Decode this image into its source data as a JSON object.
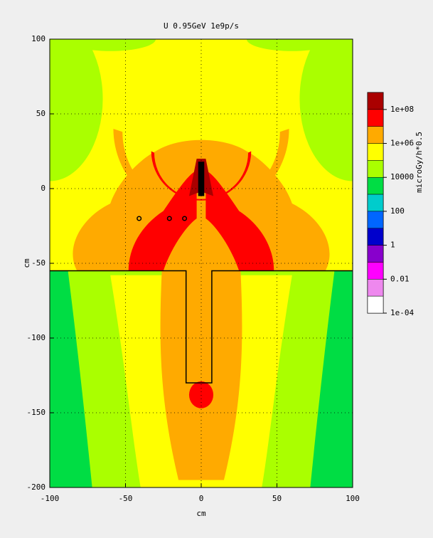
{
  "chart_data": {
    "type": "heatmap",
    "title": "U 0.95GeV 1e9p/s",
    "x_label": "cm",
    "y_label": "cm",
    "xlim": [
      -100,
      100
    ],
    "xticks": [
      -100,
      -50,
      0,
      50,
      100
    ],
    "ylim": [
      -200,
      100
    ],
    "yticks": [
      -200,
      -150,
      -100,
      -50,
      0,
      50,
      100
    ],
    "grid": true,
    "colorbar": {
      "label": "microGy/h*0.5",
      "log": true,
      "lim": [
        0.0001,
        1000000000
      ],
      "ticks": [
        {
          "value": 0.0001,
          "label": "1e-04"
        },
        0.01,
        1,
        100,
        10000,
        {
          "value": 1000000,
          "label": "1e+06"
        },
        {
          "value": 100000000,
          "label": "1e+08"
        }
      ],
      "colors": [
        "#aa0000",
        "#ff0000",
        "#ffaa00",
        "#ffff00",
        "#aaff00",
        "#00dd44",
        "#00cccc",
        "#0066ff",
        "#0000cc",
        "#8800cc",
        "#ff00ff",
        "#ee88ee",
        "#ffffff"
      ]
    }
  }
}
